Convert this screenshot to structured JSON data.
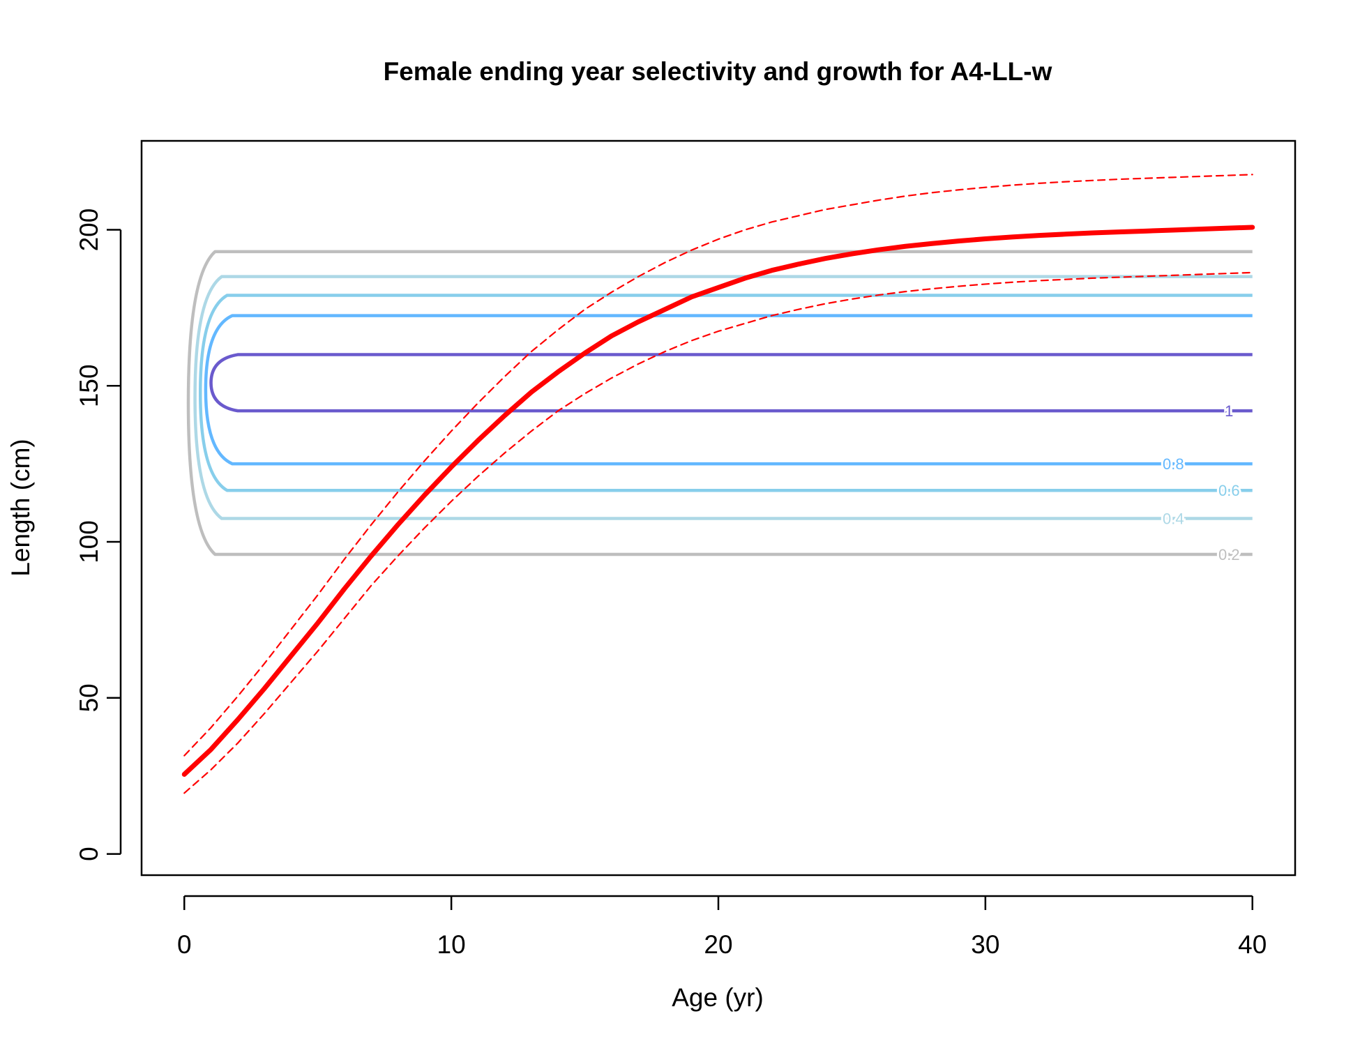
{
  "chart_data": {
    "type": "line",
    "title": "Female ending year selectivity and growth for A4-LL-w",
    "xlabel": "Age (yr)",
    "ylabel": "Length (cm)",
    "xlim": [
      -1.6,
      41.6
    ],
    "ylim": [
      -6.8,
      228.5
    ],
    "xticks": [
      "0",
      "10",
      "20",
      "30",
      "40"
    ],
    "yticks": [
      "0",
      "50",
      "100",
      "150",
      "200"
    ],
    "grid": false,
    "legend": "none",
    "growth": {
      "color": "#ff0000",
      "x": [
        0,
        1,
        2,
        3,
        4,
        5,
        6,
        7,
        8,
        9,
        10,
        11,
        12,
        13,
        14,
        15,
        16,
        17,
        18,
        19,
        20,
        21,
        22,
        23,
        24,
        25,
        26,
        27,
        28,
        29,
        30,
        31,
        32,
        33,
        34,
        35,
        36,
        37,
        38,
        39,
        40
      ],
      "mean": [
        25.5,
        33.5,
        43.0,
        53.0,
        63.5,
        74.0,
        85.0,
        95.5,
        105.5,
        115.0,
        124.0,
        132.5,
        140.5,
        148.0,
        154.5,
        160.5,
        166.0,
        170.5,
        174.5,
        178.5,
        181.5,
        184.5,
        187.0,
        189.0,
        190.8,
        192.3,
        193.6,
        194.7,
        195.6,
        196.4,
        197.1,
        197.7,
        198.2,
        198.6,
        199.0,
        199.3,
        199.6,
        199.9,
        200.2,
        200.5,
        200.8
      ],
      "upper": [
        31.5,
        40.5,
        50.5,
        61.0,
        72.0,
        83.0,
        94.5,
        105.5,
        116.0,
        126.0,
        135.5,
        144.5,
        153.0,
        161.0,
        168.0,
        174.5,
        180.0,
        185.0,
        189.5,
        193.5,
        197.0,
        200.0,
        202.5,
        204.5,
        206.5,
        208.0,
        209.5,
        210.8,
        211.9,
        212.8,
        213.6,
        214.3,
        214.9,
        215.4,
        215.8,
        216.2,
        216.5,
        216.8,
        217.1,
        217.4,
        217.7
      ],
      "lower": [
        19.5,
        27.0,
        35.5,
        45.0,
        55.0,
        65.0,
        75.5,
        86.0,
        95.5,
        104.5,
        113.0,
        121.0,
        128.5,
        135.5,
        142.0,
        147.5,
        152.5,
        157.0,
        161.0,
        164.5,
        167.5,
        170.0,
        172.5,
        174.5,
        176.3,
        177.8,
        179.1,
        180.2,
        181.1,
        181.9,
        182.6,
        183.2,
        183.7,
        184.1,
        184.5,
        184.8,
        185.1,
        185.4,
        185.7,
        186.0,
        186.3
      ]
    },
    "contours": [
      {
        "level": "0.2",
        "color": "#bebebe",
        "y_low": 96,
        "y_high": 193,
        "x_left": 0.15,
        "label": "0.2"
      },
      {
        "level": "0.4",
        "color": "#add8e6",
        "y_low": 107.5,
        "y_high": 185,
        "x_left": 0.4,
        "label": "0.4"
      },
      {
        "level": "0.6",
        "color": "#87ceeb",
        "y_low": 116.5,
        "y_high": 179,
        "x_left": 0.6,
        "label": "0.6"
      },
      {
        "level": "0.8",
        "color": "#63b8ff",
        "y_low": 125,
        "y_high": 172.5,
        "x_left": 0.8,
        "label": "0.8"
      },
      {
        "level": "1",
        "color": "#6a5acd",
        "y_low": 142,
        "y_high": 160,
        "x_left": 1.0,
        "label": "1"
      }
    ]
  }
}
